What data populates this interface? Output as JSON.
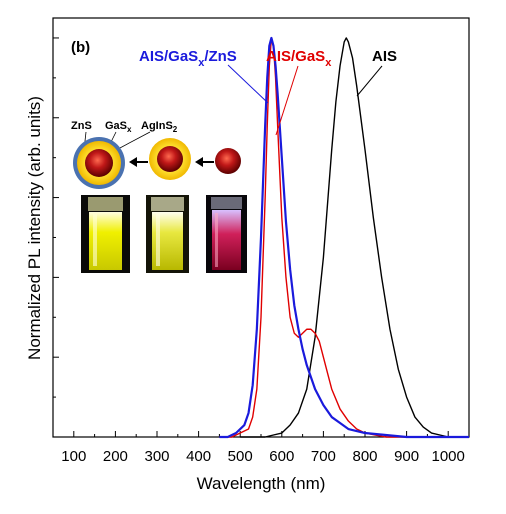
{
  "panel_label": "(b)",
  "chart_data": {
    "type": "line",
    "xlabel": "Wavelength (nm)",
    "ylabel": "Normalized PL intensity (arb. units)",
    "xlim": [
      50,
      1050
    ],
    "ylim": [
      0,
      1.05
    ],
    "x_ticks": [
      100,
      200,
      300,
      400,
      500,
      600,
      700,
      800,
      900,
      1000
    ],
    "y_ticks_shown": false,
    "grid": false,
    "series": [
      {
        "name": "AIS/GaSx/ZnS",
        "label_main": "AIS/GaS",
        "label_sub": "x",
        "label_tail": "/ZnS",
        "color": "#1a1adc",
        "x": [
          450,
          470,
          490,
          510,
          520,
          530,
          540,
          550,
          560,
          565,
          570,
          575,
          580,
          585,
          590,
          600,
          610,
          620,
          630,
          640,
          650,
          660,
          670,
          680,
          690,
          700,
          720,
          740,
          760,
          780,
          800,
          850,
          900,
          950,
          1000,
          1050
        ],
        "y": [
          0.0,
          0.0,
          0.01,
          0.03,
          0.06,
          0.13,
          0.27,
          0.5,
          0.78,
          0.9,
          0.98,
          1.0,
          0.98,
          0.93,
          0.86,
          0.7,
          0.54,
          0.42,
          0.33,
          0.27,
          0.22,
          0.18,
          0.15,
          0.12,
          0.1,
          0.08,
          0.05,
          0.035,
          0.02,
          0.015,
          0.01,
          0.005,
          0.0,
          0.0,
          0.0,
          0.0
        ]
      },
      {
        "name": "AIS/GaSx",
        "label_main": "AIS/GaS",
        "label_sub": "x",
        "label_tail": "",
        "color": "#e00000",
        "x": [
          450,
          480,
          500,
          520,
          530,
          540,
          550,
          560,
          565,
          570,
          575,
          580,
          585,
          590,
          600,
          610,
          620,
          630,
          640,
          650,
          660,
          670,
          680,
          690,
          700,
          710,
          720,
          740,
          760,
          780,
          800,
          850,
          900,
          950,
          1000
        ],
        "y": [
          0.0,
          0.0,
          0.01,
          0.02,
          0.05,
          0.12,
          0.3,
          0.6,
          0.78,
          0.93,
          1.0,
          0.98,
          0.9,
          0.78,
          0.55,
          0.4,
          0.3,
          0.26,
          0.25,
          0.26,
          0.27,
          0.27,
          0.26,
          0.24,
          0.2,
          0.16,
          0.12,
          0.07,
          0.04,
          0.02,
          0.01,
          0.0,
          0.0,
          0.0,
          0.0
        ]
      },
      {
        "name": "AIS",
        "label_main": "AIS",
        "label_sub": "",
        "label_tail": "",
        "color": "#000000",
        "x": [
          500,
          560,
          580,
          600,
          620,
          640,
          660,
          680,
          700,
          720,
          730,
          740,
          750,
          755,
          760,
          770,
          780,
          800,
          820,
          840,
          860,
          880,
          900,
          920,
          940,
          960,
          980,
          1000,
          1050
        ],
        "y": [
          0.0,
          0.0,
          0.005,
          0.01,
          0.03,
          0.06,
          0.12,
          0.25,
          0.45,
          0.72,
          0.84,
          0.93,
          0.99,
          1.0,
          0.99,
          0.95,
          0.88,
          0.72,
          0.55,
          0.4,
          0.27,
          0.17,
          0.1,
          0.05,
          0.025,
          0.01,
          0.005,
          0.0,
          0.0
        ]
      }
    ]
  },
  "inset": {
    "labels": [
      {
        "main": "ZnS",
        "sub": ""
      },
      {
        "main": "GaS",
        "sub": "x"
      },
      {
        "main": "AgInS",
        "sub": "2"
      }
    ],
    "colors": {
      "core": "#b01010",
      "shell": "#f2d400",
      "outer_shell": "#4a72b0",
      "vial_glow_1": "#e6e600",
      "vial_glow_2": "#e6e610",
      "vial_glow_3": "#c0103a"
    }
  }
}
